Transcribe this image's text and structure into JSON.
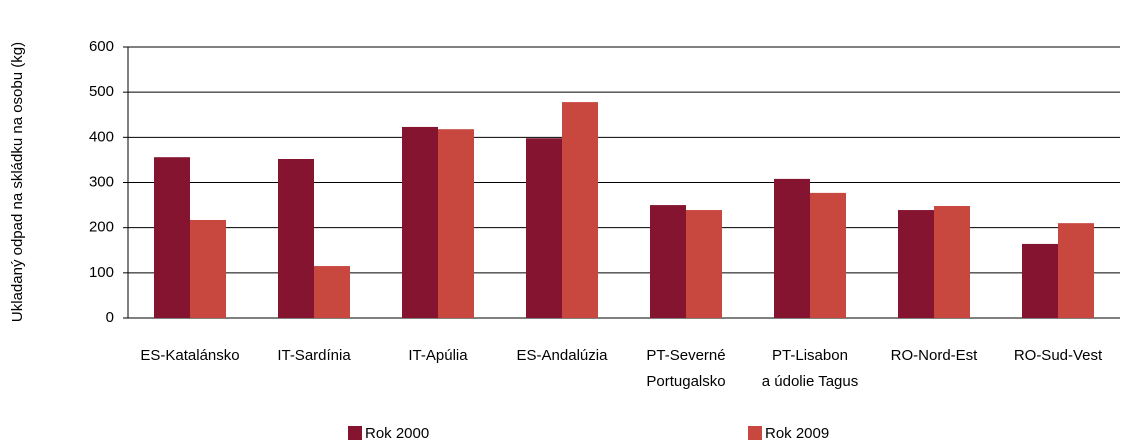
{
  "chart_data": {
    "type": "bar",
    "y_label": "Ukladaný odpad na skládku na osobu (kg)",
    "categories": [
      [
        "ES-Katalánsko"
      ],
      [
        "IT-Sardínia"
      ],
      [
        "IT-Apúlia"
      ],
      [
        "ES-Andalúzia"
      ],
      [
        "PT-Severné",
        "Portugalsko"
      ],
      [
        "PT-Lisabon",
        "a údolie Tagus"
      ],
      [
        "RO-Nord-Est"
      ],
      [
        "RO-Sud-Vest"
      ]
    ],
    "series": [
      {
        "name": "Rok 2000",
        "color": "#84142f",
        "values": [
          356,
          352,
          423,
          398,
          250,
          308,
          239,
          164
        ]
      },
      {
        "name": "Rok 2009",
        "color": "#c8483f",
        "values": [
          217,
          115,
          418,
          478,
          239,
          277,
          248,
          210
        ]
      }
    ],
    "ylim": [
      0,
      600
    ],
    "yticks": [
      0,
      100,
      200,
      300,
      400,
      500,
      600
    ],
    "grid": true
  }
}
